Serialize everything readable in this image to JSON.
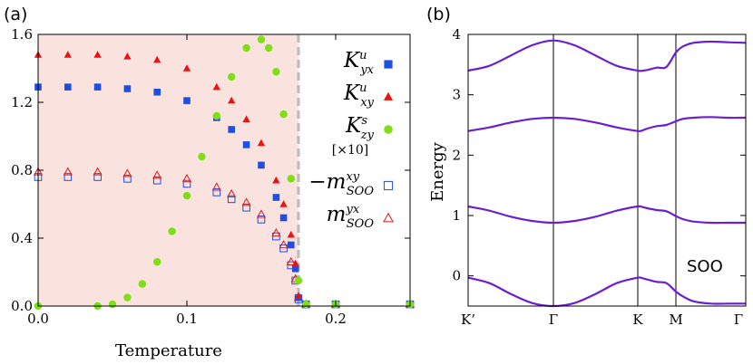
{
  "chart_data": [
    {
      "type": "scatter",
      "panel_label": "(a)",
      "title": "",
      "xlabel": "Temperature",
      "ylabel": "",
      "xlim": [
        0,
        0.25
      ],
      "ylim": [
        0,
        1.6
      ],
      "x_ticks": [
        "0.0",
        "0.1",
        "0.2"
      ],
      "y_ticks": [
        "0.0",
        "0.4",
        "0.8",
        "1.2",
        "1.6"
      ],
      "shaded_region": {
        "x_from": 0,
        "x_to": 0.175,
        "color": "#fae2de"
      },
      "critical_line_x": 0.175,
      "legend_position": "right",
      "series": [
        {
          "name": "K^u_yx",
          "legend_main": "K",
          "legend_sup": "u",
          "legend_sub": "yx",
          "marker": "square-filled",
          "color": "#1f4fe0",
          "x": [
            0.0,
            0.02,
            0.04,
            0.06,
            0.08,
            0.1,
            0.12,
            0.13,
            0.14,
            0.15,
            0.16,
            0.165,
            0.17,
            0.173,
            0.175,
            0.18,
            0.2,
            0.25
          ],
          "y": [
            1.29,
            1.29,
            1.29,
            1.28,
            1.26,
            1.21,
            1.11,
            1.04,
            0.95,
            0.83,
            0.64,
            0.52,
            0.36,
            0.22,
            0.05,
            0.01,
            0.01,
            0.01
          ]
        },
        {
          "name": "K^u_xy",
          "legend_main": "K",
          "legend_sup": "u",
          "legend_sub": "xy",
          "marker": "triangle-filled",
          "color": "#e81414",
          "x": [
            0.0,
            0.02,
            0.04,
            0.06,
            0.08,
            0.1,
            0.12,
            0.13,
            0.14,
            0.15,
            0.16,
            0.165,
            0.17,
            0.173,
            0.175,
            0.18,
            0.2,
            0.25
          ],
          "y": [
            1.48,
            1.48,
            1.48,
            1.47,
            1.45,
            1.4,
            1.29,
            1.21,
            1.1,
            0.96,
            0.74,
            0.6,
            0.42,
            0.25,
            0.06,
            0.01,
            0.01,
            0.01
          ]
        },
        {
          "name": "K^s_zy",
          "legend_main": "K",
          "legend_sup": "s",
          "legend_sub": "zy",
          "legend_note": "[×10]",
          "marker": "circle-filled",
          "color": "#7ee014",
          "x": [
            0.0,
            0.04,
            0.05,
            0.06,
            0.07,
            0.08,
            0.09,
            0.1,
            0.11,
            0.12,
            0.13,
            0.14,
            0.15,
            0.155,
            0.16,
            0.165,
            0.17,
            0.175,
            0.18,
            0.2,
            0.25
          ],
          "y": [
            0.0,
            0.0,
            0.01,
            0.05,
            0.13,
            0.26,
            0.44,
            0.65,
            0.88,
            1.12,
            1.35,
            1.52,
            1.57,
            1.52,
            1.38,
            1.13,
            0.75,
            0.15,
            0.01,
            0.01,
            0.01
          ]
        },
        {
          "name": "-m^xy_SOO",
          "legend_main": "−m",
          "legend_sup": "xy",
          "legend_sub": "SOO",
          "marker": "square-open",
          "color": "#1f4fe0",
          "x": [
            0.0,
            0.02,
            0.04,
            0.06,
            0.08,
            0.1,
            0.12,
            0.13,
            0.14,
            0.15,
            0.16,
            0.165,
            0.17,
            0.173,
            0.175,
            0.18,
            0.2,
            0.25
          ],
          "y": [
            0.76,
            0.76,
            0.76,
            0.75,
            0.74,
            0.72,
            0.67,
            0.63,
            0.58,
            0.51,
            0.41,
            0.34,
            0.24,
            0.15,
            0.04,
            0.01,
            0.01,
            0.01
          ]
        },
        {
          "name": "m^yx_SOO",
          "legend_main": "m",
          "legend_sup": "yx",
          "legend_sub": "SOO",
          "marker": "triangle-open",
          "color": "#e81414",
          "x": [
            0.0,
            0.02,
            0.04,
            0.06,
            0.08,
            0.1,
            0.12,
            0.13,
            0.14,
            0.15,
            0.16,
            0.165,
            0.17,
            0.173,
            0.175,
            0.18,
            0.2,
            0.25
          ],
          "y": [
            0.79,
            0.79,
            0.79,
            0.78,
            0.77,
            0.75,
            0.7,
            0.66,
            0.61,
            0.54,
            0.43,
            0.36,
            0.26,
            0.16,
            0.05,
            0.01,
            0.01,
            0.01
          ]
        }
      ]
    },
    {
      "type": "line",
      "panel_label": "(b)",
      "title": "",
      "xlabel": "",
      "ylabel": "Energy",
      "ylim": [
        -0.5,
        4
      ],
      "x_ticks": [
        "K’",
        "Γ",
        "K",
        "M",
        "Γ"
      ],
      "y_ticks": [
        "0",
        "1",
        "2",
        "3",
        "4"
      ],
      "annotation": "SOO",
      "line_color": "#6a1fd0",
      "x": [
        0,
        0.125,
        0.25,
        0.375,
        0.5,
        0.625,
        0.75,
        0.875,
        1,
        1.125,
        1.25,
        1.5,
        1.75,
        2,
        2.1,
        2.25,
        2.5,
        2.75,
        3
      ],
      "series": [
        {
          "name": "",
          "values": [
            3.4,
            3.48,
            3.65,
            3.82,
            3.9,
            3.82,
            3.65,
            3.48,
            3.4,
            3.4,
            3.41,
            3.45,
            3.46,
            3.7,
            3.8,
            3.86,
            3.88,
            3.87,
            3.86
          ]
        },
        {
          "name": "",
          "values": [
            2.4,
            2.46,
            2.54,
            2.6,
            2.62,
            2.6,
            2.54,
            2.46,
            2.4,
            2.41,
            2.44,
            2.48,
            2.5,
            2.56,
            2.6,
            2.62,
            2.63,
            2.62,
            2.62
          ]
        },
        {
          "name": "",
          "values": [
            1.15,
            1.08,
            0.98,
            0.91,
            0.88,
            0.91,
            0.98,
            1.08,
            1.15,
            1.14,
            1.12,
            1.09,
            1.07,
            0.99,
            0.94,
            0.9,
            0.88,
            0.88,
            0.88
          ]
        },
        {
          "name": "",
          "values": [
            -0.03,
            -0.12,
            -0.3,
            -0.45,
            -0.5,
            -0.45,
            -0.3,
            -0.12,
            -0.03,
            -0.04,
            -0.06,
            -0.1,
            -0.12,
            -0.26,
            -0.34,
            -0.42,
            -0.46,
            -0.46,
            -0.46
          ]
        }
      ]
    }
  ]
}
